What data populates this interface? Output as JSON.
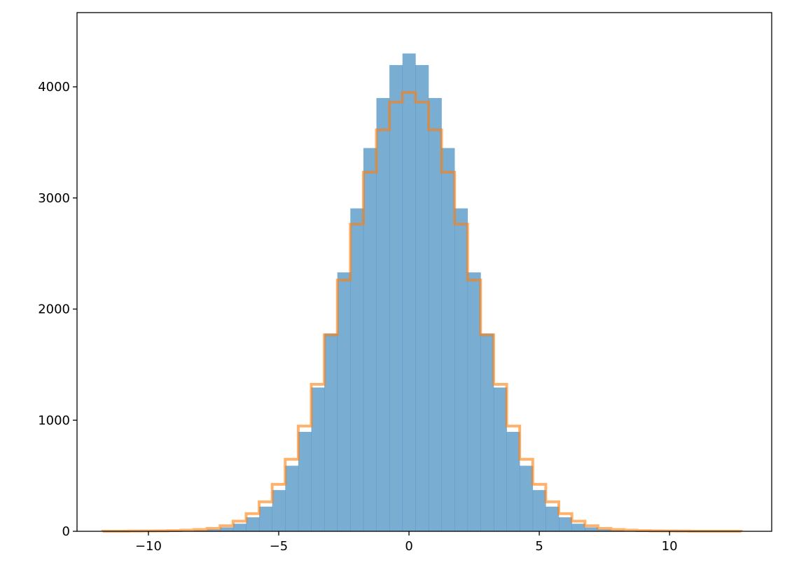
{
  "chart_data": {
    "type": "bar",
    "subtype": "overlapping histograms",
    "title": "",
    "xlabel": "",
    "ylabel": "",
    "xlim": [
      -12.74,
      13.92
    ],
    "ylim": [
      0,
      4668
    ],
    "grid": false,
    "bin_width": 0.5,
    "x_ticks": [
      -10,
      -5,
      0,
      5,
      10
    ],
    "x_tick_labels": [
      "−10",
      "−5",
      "0",
      "5",
      "10"
    ],
    "y_ticks": [
      0,
      1000,
      2000,
      3000,
      4000
    ],
    "y_tick_labels": [
      "0",
      "1000",
      "2000",
      "3000",
      "4000"
    ],
    "series": [
      {
        "color": "#1f77b4",
        "alpha": 0.6,
        "style": "filled",
        "x": [
          -8,
          -7.5,
          -7,
          -6.5,
          -6,
          -5.5,
          -5,
          -4.5,
          -4,
          -3.5,
          -3,
          -2.5,
          -2,
          -1.5,
          -1,
          -0.5,
          0,
          0.5,
          1,
          1.5,
          2,
          2.5,
          3,
          3.5,
          4,
          4.5,
          5,
          5.5,
          6,
          6.5,
          7,
          7.5,
          8
        ],
        "values": [
          8,
          17,
          35,
          68,
          126,
          222,
          371,
          590,
          895,
          1294,
          1780,
          2330,
          2906,
          3449,
          3899,
          4196,
          4300,
          4196,
          3899,
          3449,
          2906,
          2330,
          1780,
          1294,
          895,
          590,
          371,
          222,
          126,
          68,
          35,
          17,
          8
        ]
      },
      {
        "color": "#ff7f0e",
        "alpha": 0.6,
        "style": "step",
        "x": [
          -11.5,
          -11,
          -10.5,
          -10,
          -9.5,
          -9,
          -8.5,
          -8,
          -7.5,
          -7,
          -6.5,
          -6,
          -5.5,
          -5,
          -4.5,
          -4,
          -3.5,
          -3,
          -2.5,
          -2,
          -1.5,
          -1,
          -0.5,
          0,
          0.5,
          1,
          1.5,
          2,
          2.5,
          3,
          3.5,
          4,
          4.5,
          5,
          5.5,
          6,
          6.5,
          7,
          7.5,
          8,
          8.5,
          9,
          9.5,
          10,
          10.5,
          11,
          11.5,
          12,
          12.5
        ],
        "values": [
          1,
          1,
          2,
          3,
          4,
          6,
          10,
          16,
          26,
          50,
          91,
          159,
          265,
          423,
          648,
          947,
          1323,
          1768,
          2261,
          2764,
          3231,
          3613,
          3863,
          3950,
          3863,
          3613,
          3231,
          2764,
          2261,
          1768,
          1323,
          947,
          648,
          423,
          265,
          159,
          91,
          50,
          26,
          16,
          10,
          6,
          4,
          3,
          2,
          1,
          1,
          1,
          0.5
        ]
      }
    ]
  }
}
